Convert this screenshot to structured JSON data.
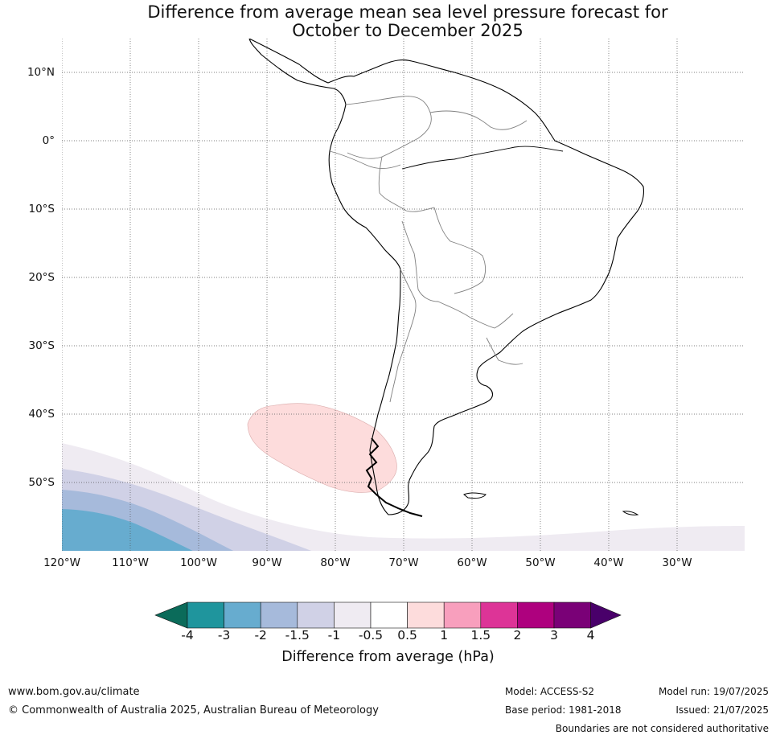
{
  "title_line1": "Difference from average mean sea level pressure forecast for",
  "title_line2": "October to December 2025",
  "map": {
    "lat_labels": [
      "10°N",
      "0°",
      "10°S",
      "20°S",
      "30°S",
      "40°S",
      "50°S"
    ],
    "lon_labels": [
      "120°W",
      "110°W",
      "100°W",
      "90°W",
      "80°W",
      "70°W",
      "60°W",
      "50°W",
      "40°W",
      "30°W"
    ]
  },
  "colorbar": {
    "title": "Difference from average (hPa)",
    "ticks": [
      "-4",
      "-3",
      "-2",
      "-1.5",
      "-1",
      "-0.5",
      "0.5",
      "1",
      "1.5",
      "2",
      "3",
      "4"
    ],
    "colors": {
      "lt_m4": "#0b6b5a",
      "m4_m3": "#1f959d",
      "m3_m2": "#67accf",
      "m2_m15": "#a6badb",
      "m15_m1": "#d0d1e6",
      "m1_m05": "#efebf2",
      "m05_05": "#ffffff",
      "p05_1": "#fddcdc",
      "p1_15": "#f89fbd",
      "p15_2": "#dd3497",
      "p2_3": "#ae017e",
      "p3_4": "#7a0177",
      "gt_4": "#49006a"
    }
  },
  "footer": {
    "website": "www.bom.gov.au/climate",
    "copyright": "© Commonwealth of Australia 2025, Australian Bureau of Meteorology",
    "model": "Model: ACCESS-S2",
    "base_period": "Base period: 1981-2018",
    "model_run": "Model run: 19/07/2025",
    "issued": "Issued: 21/07/2025",
    "disclaimer": "Boundaries are not considered authoritative"
  }
}
